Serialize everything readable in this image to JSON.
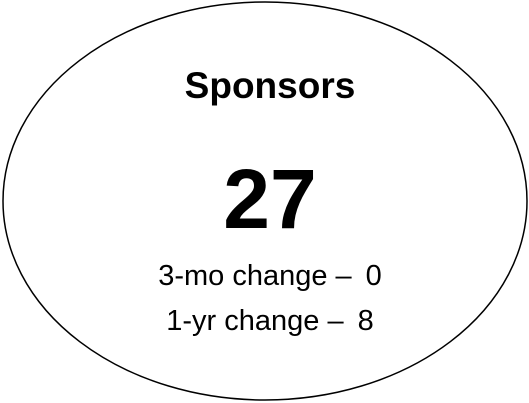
{
  "title": "Sponsors",
  "value": 27,
  "changes": [
    {
      "label": "3-mo change –",
      "value": 0
    },
    {
      "label": "1-yr change –",
      "value": 8
    }
  ]
}
